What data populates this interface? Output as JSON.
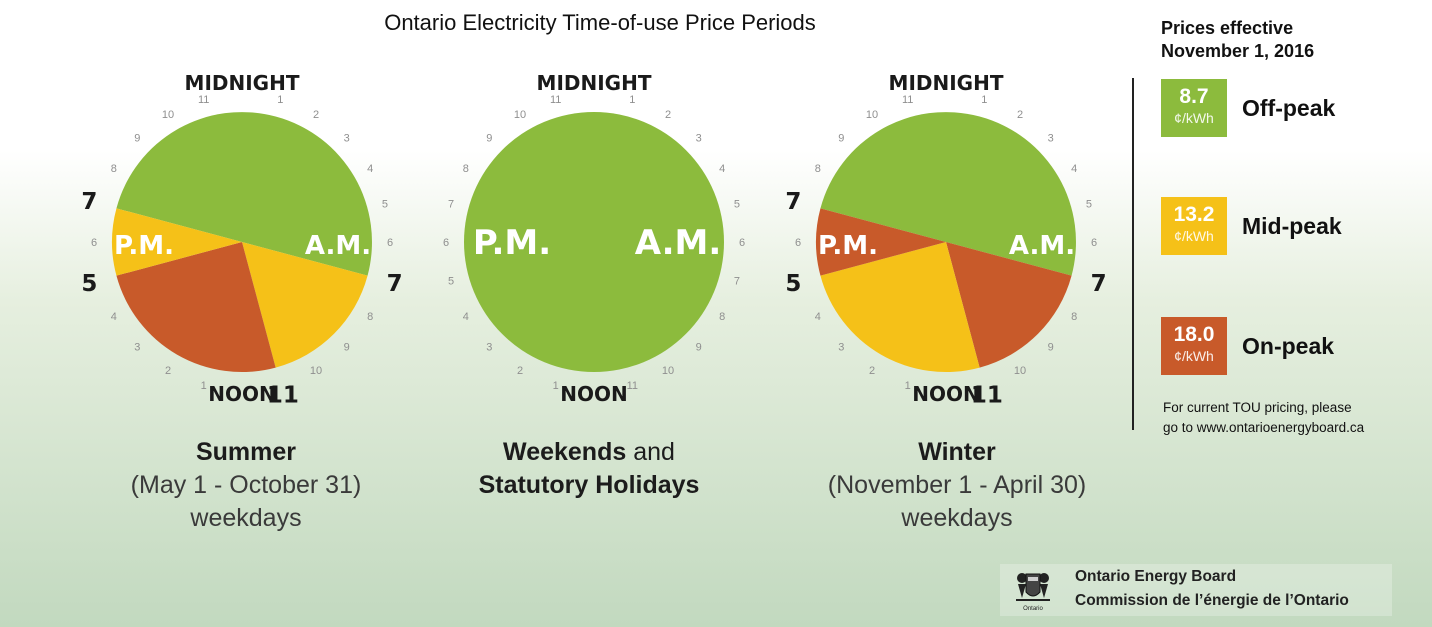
{
  "title": "Ontario Electricity Time-of-use Price Periods",
  "colors": {
    "off_peak": "#8cbb3d",
    "mid_peak": "#f5c118",
    "on_peak": "#c85a2a"
  },
  "clock_labels": {
    "midnight": "MIDNIGHT",
    "noon": "NOON",
    "am": "A.M.",
    "pm": "P.M.",
    "hour_numbers": [
      "1",
      "2",
      "3",
      "4",
      "5",
      "6",
      "7",
      "8",
      "9",
      "10",
      "11",
      "1",
      "2",
      "3",
      "4",
      "5",
      "6",
      "7",
      "8",
      "9",
      "10",
      "11"
    ]
  },
  "clocks": [
    {
      "id": "summer",
      "periods": [
        {
          "rate": "off_peak",
          "from": 19,
          "to": 31
        },
        {
          "rate": "mid_peak",
          "from": 7,
          "to": 11
        },
        {
          "rate": "on_peak",
          "from": 11,
          "to": 17
        },
        {
          "rate": "mid_peak",
          "from": 17,
          "to": 19
        }
      ],
      "markers": [
        {
          "hour": 7,
          "label": "7"
        },
        {
          "hour": 11,
          "label": "11"
        },
        {
          "hour": 17,
          "label": "5"
        },
        {
          "hour": 19,
          "label": "7"
        }
      ]
    },
    {
      "id": "weekends",
      "periods": [
        {
          "rate": "off_peak",
          "from": 0,
          "to": 24
        }
      ],
      "markers": []
    },
    {
      "id": "winter",
      "periods": [
        {
          "rate": "off_peak",
          "from": 19,
          "to": 31
        },
        {
          "rate": "on_peak",
          "from": 7,
          "to": 11
        },
        {
          "rate": "mid_peak",
          "from": 11,
          "to": 17
        },
        {
          "rate": "on_peak",
          "from": 17,
          "to": 19
        }
      ],
      "markers": [
        {
          "hour": 7,
          "label": "7"
        },
        {
          "hour": 11,
          "label": "11"
        },
        {
          "hour": 17,
          "label": "5"
        },
        {
          "hour": 19,
          "label": "7"
        }
      ]
    }
  ],
  "captions": {
    "summer": {
      "line1": "Summer",
      "line2": "(May 1 - October 31)",
      "line3": "weekdays"
    },
    "weekends": {
      "line1_bold": "Weekends",
      "line1_rest": " and",
      "line2": "Statutory Holidays"
    },
    "winter": {
      "line1": "Winter",
      "line2": "(November 1 - April 30)",
      "line3": "weekdays"
    }
  },
  "legend": {
    "heading_line1": "Prices effective",
    "heading_line2": "November 1, 2016",
    "items": [
      {
        "price": "8.7",
        "unit": "¢/kWh",
        "label": "Off-peak"
      },
      {
        "price": "13.2",
        "unit": "¢/kWh",
        "label": "Mid-peak"
      },
      {
        "price": "18.0",
        "unit": "¢/kWh",
        "label": "On-peak"
      }
    ],
    "note_line1": "For current TOU pricing, please",
    "note_line2": "go to www.ontarioenergyboard.ca"
  },
  "footer": {
    "name_en": "Ontario Energy Board",
    "name_fr": "Commission de l’énergie de l’Ontario",
    "logo_text": "Ontario"
  }
}
